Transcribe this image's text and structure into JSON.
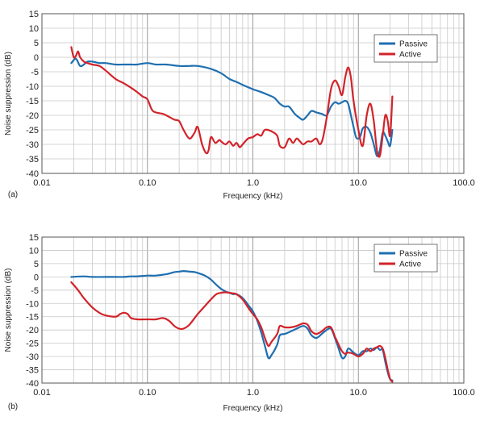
{
  "chart_data": [
    {
      "type": "line",
      "panel_label": "(a)",
      "xlabel": "Frequency (kHz)",
      "ylabel": "Noise suppression (dB)",
      "xscale": "log",
      "xlim": [
        0.01,
        100
      ],
      "ylim": [
        -40,
        15
      ],
      "xticks": [
        0.01,
        0.1,
        1,
        10,
        100
      ],
      "xtick_labels": [
        "0.01",
        "0.10",
        "1.0",
        "10.0",
        "100.0"
      ],
      "yticks": [
        15,
        10,
        5,
        0,
        -5,
        -10,
        -15,
        -20,
        -25,
        -30,
        -35,
        -40
      ],
      "ytick_labels": [
        "15",
        "10",
        "5",
        "0",
        "-5",
        "-10",
        "-15",
        "-20",
        "-25",
        "-30",
        "-35",
        "-40"
      ],
      "grid": true,
      "legend_position": "top-right",
      "series": [
        {
          "name": "Passive",
          "color": "#1f6fb0",
          "x": [
            0.019,
            0.021,
            0.023,
            0.025,
            0.027,
            0.03,
            0.035,
            0.04,
            0.05,
            0.06,
            0.07,
            0.08,
            0.1,
            0.12,
            0.15,
            0.2,
            0.25,
            0.3,
            0.4,
            0.5,
            0.6,
            0.7,
            0.8,
            1.0,
            1.2,
            1.4,
            1.6,
            1.8,
            2.0,
            2.2,
            2.5,
            2.8,
            3.0,
            3.3,
            3.6,
            4.0,
            4.5,
            5.0,
            5.5,
            6.0,
            6.5,
            7.0,
            7.5,
            8.0,
            8.5,
            9.0,
            9.5,
            10.0,
            10.5,
            11.0,
            12.0,
            13.0,
            14.0,
            15.0,
            16.0,
            17.0,
            18.0,
            19.0,
            20.0,
            21.0
          ],
          "y": [
            -2,
            -0.5,
            -3,
            -2.5,
            -1.5,
            -1.5,
            -2,
            -2,
            -2.5,
            -2.5,
            -2.5,
            -2.5,
            -2,
            -2.5,
            -2.5,
            -3,
            -3,
            -3,
            -4,
            -5.5,
            -7.5,
            -8.5,
            -9.5,
            -11,
            -12,
            -13,
            -14,
            -16,
            -17,
            -17,
            -19.5,
            -21,
            -21.5,
            -20,
            -18.5,
            -19,
            -19.5,
            -20,
            -17,
            -15.5,
            -16,
            -15.5,
            -15,
            -16,
            -20,
            -24,
            -27.5,
            -28,
            -27,
            -24.5,
            -24,
            -26,
            -30,
            -34,
            -32,
            -26,
            -27,
            -29,
            -30.5,
            -25
          ]
        },
        {
          "name": "Active",
          "color": "#d2232a",
          "x": [
            0.019,
            0.02,
            0.021,
            0.022,
            0.023,
            0.025,
            0.027,
            0.03,
            0.035,
            0.04,
            0.05,
            0.06,
            0.07,
            0.08,
            0.09,
            0.1,
            0.11,
            0.12,
            0.14,
            0.16,
            0.18,
            0.2,
            0.22,
            0.25,
            0.28,
            0.3,
            0.33,
            0.36,
            0.38,
            0.4,
            0.44,
            0.48,
            0.5,
            0.55,
            0.6,
            0.65,
            0.7,
            0.75,
            0.8,
            0.9,
            1.0,
            1.1,
            1.2,
            1.3,
            1.5,
            1.7,
            1.8,
            2.0,
            2.2,
            2.4,
            2.6,
            2.8,
            3.0,
            3.3,
            3.6,
            4.0,
            4.3,
            4.6,
            5.0,
            5.5,
            6.0,
            6.5,
            7.0,
            7.5,
            8.0,
            8.5,
            9.0,
            10.0,
            11.0,
            12.0,
            13.0,
            14.0,
            15.0,
            16.0,
            17.0,
            18.0,
            19.0,
            20.0,
            21.0
          ],
          "y": [
            3.5,
            0,
            0.5,
            2,
            0,
            -1.5,
            -2,
            -2.5,
            -3,
            -4.5,
            -7.5,
            -9,
            -10.5,
            -12,
            -13.5,
            -14.5,
            -18,
            -19,
            -19.5,
            -20.5,
            -21.5,
            -22,
            -25,
            -28,
            -26,
            -24,
            -30,
            -33,
            -32,
            -27.5,
            -29.5,
            -28.5,
            -29,
            -30,
            -29,
            -30.5,
            -29.5,
            -31,
            -30,
            -28,
            -27.5,
            -26.5,
            -27,
            -25,
            -25.5,
            -27,
            -30.5,
            -31,
            -28,
            -29.5,
            -28,
            -29,
            -30,
            -29,
            -29,
            -28,
            -30,
            -28,
            -21,
            -11,
            -8,
            -10,
            -13,
            -7,
            -3.5,
            -7,
            -15,
            -25,
            -30.5,
            -20,
            -16,
            -22,
            -32,
            -34,
            -27,
            -20,
            -22,
            -27,
            -13.5
          ]
        }
      ]
    },
    {
      "type": "line",
      "panel_label": "(b)",
      "xlabel": "Frequency (kHz)",
      "ylabel": "Noise suppression (dB)",
      "xscale": "log",
      "xlim": [
        0.01,
        100
      ],
      "ylim": [
        -40,
        15
      ],
      "xticks": [
        0.01,
        0.1,
        1,
        10,
        100
      ],
      "xtick_labels": [
        "0.01",
        "0.10",
        "1.0",
        "10.0",
        "100.0"
      ],
      "yticks": [
        15,
        10,
        5,
        0,
        -5,
        -10,
        -15,
        -20,
        -25,
        -30,
        -35,
        -40
      ],
      "ytick_labels": [
        "15",
        "10",
        "5",
        "0",
        "-5",
        "-10",
        "-15",
        "-20",
        "-25",
        "-30",
        "-35",
        "-40"
      ],
      "grid": true,
      "legend_position": "top-right",
      "series": [
        {
          "name": "Passive",
          "color": "#1f6fb0",
          "x": [
            0.019,
            0.025,
            0.03,
            0.04,
            0.05,
            0.06,
            0.07,
            0.08,
            0.1,
            0.12,
            0.15,
            0.18,
            0.2,
            0.22,
            0.25,
            0.28,
            0.3,
            0.35,
            0.4,
            0.45,
            0.5,
            0.55,
            0.6,
            0.65,
            0.7,
            0.8,
            0.9,
            1.0,
            1.1,
            1.2,
            1.3,
            1.4,
            1.5,
            1.7,
            1.8,
            2.0,
            2.3,
            2.6,
            3.0,
            3.3,
            3.6,
            4.0,
            4.5,
            5.0,
            5.5,
            6.0,
            6.5,
            7.0,
            7.5,
            8.0,
            9.0,
            10.0,
            11.0,
            12.0,
            13.0,
            14.0,
            15.0,
            16.0,
            17.0,
            18.0,
            19.0,
            20.0,
            21.0
          ],
          "y": [
            0,
            0.2,
            0,
            0,
            0,
            0,
            0.2,
            0.2,
            0.5,
            0.5,
            1,
            1.8,
            2,
            2.2,
            2,
            1.8,
            1.5,
            0.5,
            -1,
            -3,
            -4.5,
            -5.5,
            -6,
            -6.5,
            -6.5,
            -8,
            -10.5,
            -13,
            -16.5,
            -21,
            -26,
            -30.5,
            -29.5,
            -25.5,
            -22,
            -21.5,
            -20.5,
            -19.5,
            -18.5,
            -19.5,
            -22,
            -23,
            -21.5,
            -20,
            -19.5,
            -23,
            -27,
            -30.5,
            -30,
            -27,
            -28.5,
            -29.5,
            -28,
            -28,
            -27,
            -27.5,
            -26.5,
            -27.5,
            -27.5,
            -32,
            -36,
            -38.5,
            -39
          ]
        },
        {
          "name": "Active",
          "color": "#d2232a",
          "x": [
            0.019,
            0.022,
            0.025,
            0.03,
            0.035,
            0.04,
            0.05,
            0.055,
            0.06,
            0.065,
            0.07,
            0.08,
            0.1,
            0.12,
            0.14,
            0.16,
            0.18,
            0.2,
            0.22,
            0.25,
            0.3,
            0.35,
            0.4,
            0.45,
            0.5,
            0.55,
            0.6,
            0.65,
            0.7,
            0.8,
            0.9,
            1.0,
            1.1,
            1.2,
            1.3,
            1.4,
            1.5,
            1.7,
            1.8,
            2.0,
            2.3,
            2.6,
            3.0,
            3.3,
            3.6,
            4.0,
            4.5,
            5.0,
            5.5,
            6.0,
            6.5,
            7.0,
            7.5,
            8.0,
            9.0,
            10.0,
            11.0,
            12.0,
            13.0,
            14.0,
            15.0,
            16.0,
            17.0,
            18.0,
            19.0,
            20.0,
            21.0
          ],
          "y": [
            -2,
            -5,
            -8,
            -11.5,
            -13.5,
            -14.5,
            -15,
            -14,
            -13.5,
            -14,
            -15.5,
            -16,
            -16,
            -16,
            -15.5,
            -16.5,
            -18.5,
            -19.5,
            -19.5,
            -18,
            -14,
            -11,
            -8.5,
            -6.5,
            -6,
            -5.8,
            -6,
            -6.2,
            -6.5,
            -8.5,
            -11.5,
            -14,
            -16,
            -19,
            -23,
            -26,
            -24.5,
            -21.5,
            -18.5,
            -19,
            -19,
            -18.5,
            -17.5,
            -18,
            -20.5,
            -21.5,
            -20.5,
            -19,
            -19,
            -22.5,
            -25.5,
            -28,
            -29,
            -28.5,
            -29,
            -30,
            -29,
            -27,
            -28,
            -27,
            -26.5,
            -26,
            -27,
            -30.5,
            -35,
            -38.5,
            -39.5
          ]
        }
      ]
    }
  ]
}
